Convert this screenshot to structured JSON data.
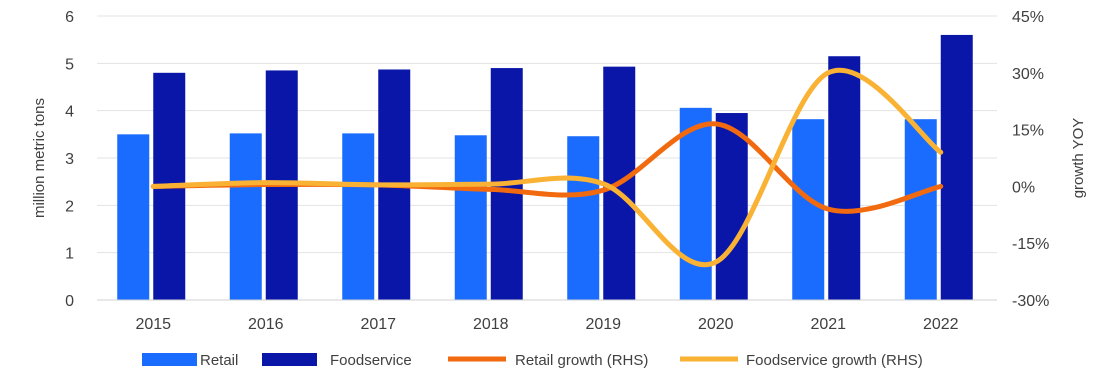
{
  "chart_data": {
    "type": "bar",
    "categories": [
      "2015",
      "2016",
      "2017",
      "2018",
      "2019",
      "2020",
      "2021",
      "2022"
    ],
    "series": [
      {
        "name": "Retail",
        "type": "bar",
        "axis": "left",
        "color": "#1a6cff",
        "values": [
          3.5,
          3.52,
          3.52,
          3.48,
          3.46,
          4.06,
          3.82,
          3.82
        ]
      },
      {
        "name": "Foodservice",
        "type": "bar",
        "axis": "left",
        "color": "#0a16a8",
        "values": [
          4.8,
          4.85,
          4.87,
          4.9,
          4.93,
          3.95,
          5.15,
          5.6
        ]
      },
      {
        "name": "Retail growth (RHS)",
        "type": "line",
        "axis": "right",
        "color": "#f26a0f",
        "values": [
          0,
          0.5,
          0.4,
          -0.8,
          -1.0,
          16.5,
          -6.0,
          0
        ]
      },
      {
        "name": "Foodservice growth (RHS)",
        "type": "line",
        "axis": "right",
        "color": "#f9b233",
        "values": [
          0,
          1.0,
          0.4,
          0.6,
          0.7,
          -20.0,
          30.0,
          9.0
        ]
      }
    ],
    "ylabel": "million metric tons",
    "y2label": "growth YOY",
    "ylim": [
      0,
      6
    ],
    "yticks": [
      "0",
      "1",
      "2",
      "3",
      "4",
      "5",
      "6"
    ],
    "y2lim": [
      -30,
      45
    ],
    "y2ticks": [
      "-30%",
      "-15%",
      "0%",
      "15%",
      "30%",
      "45%"
    ],
    "grid": true,
    "legend_position": "bottom"
  }
}
